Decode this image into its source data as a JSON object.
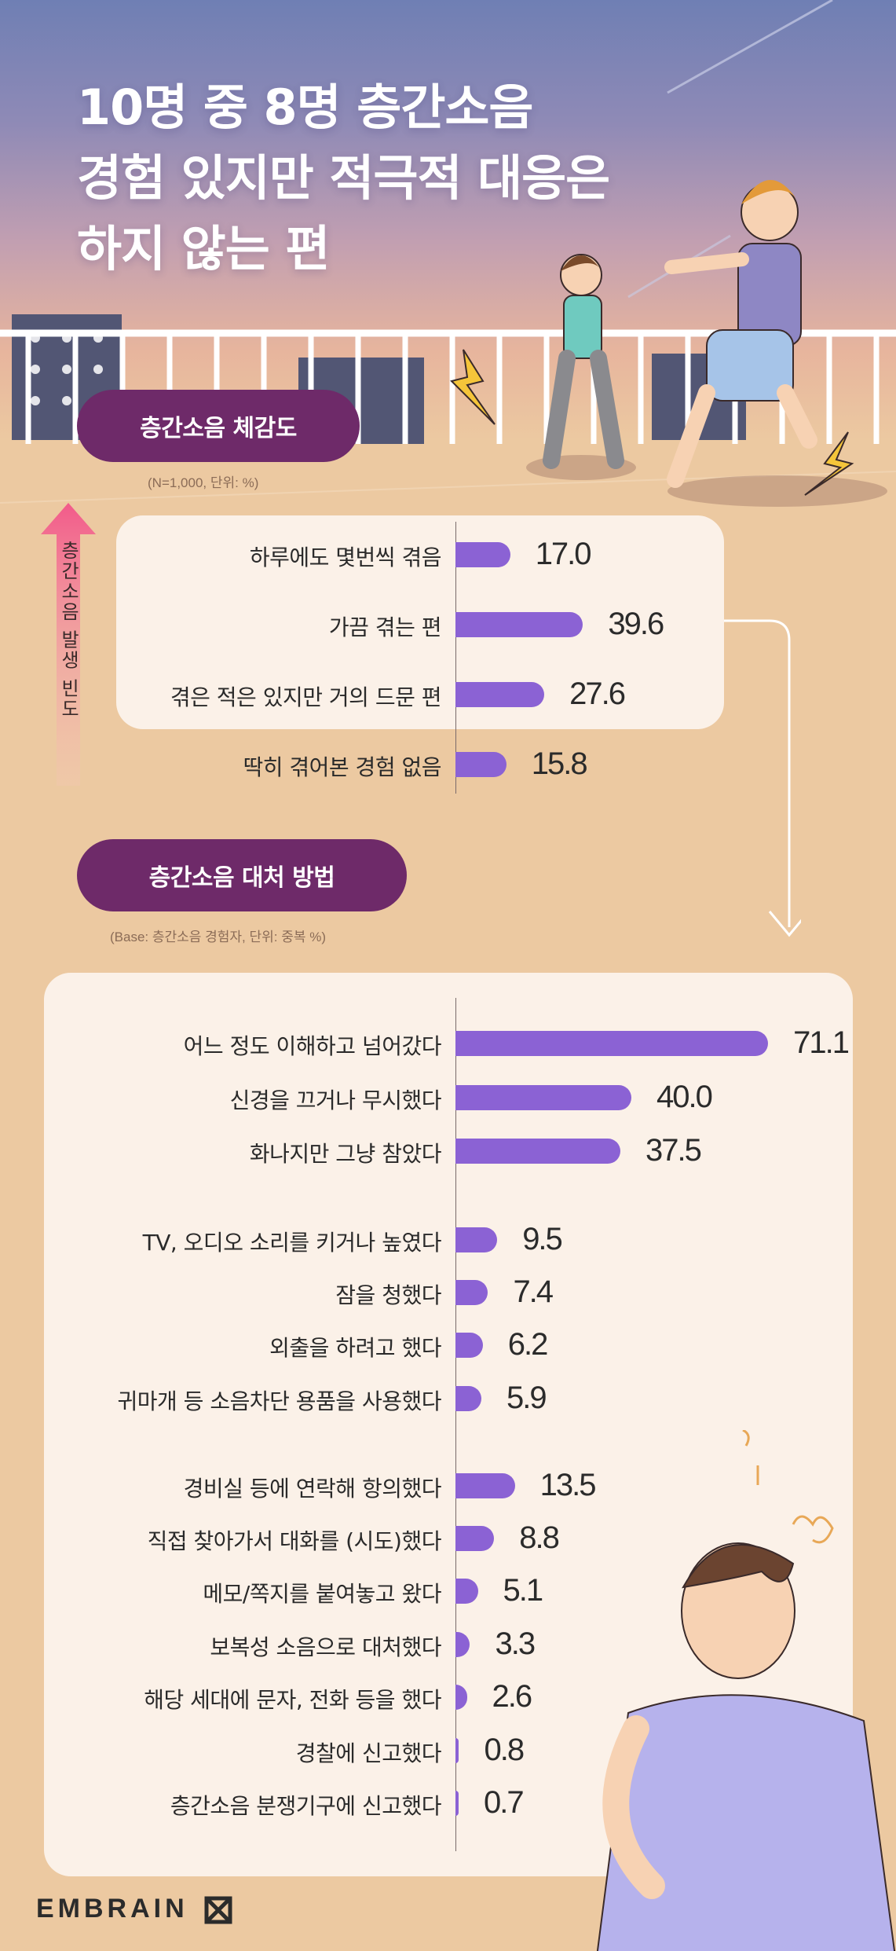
{
  "title": {
    "lines": [
      "10명 중 8명 층간소음",
      "경험 있지만 적극적 대응은",
      "하지 않는 편"
    ]
  },
  "section1": {
    "pill": "층간소음 체감도",
    "note": "(N=1,000, 단위: %)",
    "axis_label": "층간소음 발생 빈도"
  },
  "section2": {
    "pill": "층간소음 대처 방법",
    "note": "(Base: 층간소음 경험자, 단위: 중복 %)"
  },
  "brand": "EMBRAIN",
  "colors": {
    "bar": "#8b62d4",
    "pill": "#6e2a69",
    "panel": "#fbf1e8",
    "background": "#ecc9a1"
  },
  "chart_data": [
    {
      "type": "bar",
      "orientation": "horizontal",
      "title": "층간소음 체감도",
      "categories": [
        "하루에도 몇번씩 겪음",
        "가끔 겪는 편",
        "겪은 적은 있지만 거의 드문 편",
        "딱히 겪어본 경험 없음"
      ],
      "values": [
        17.0,
        39.6,
        27.6,
        15.8
      ],
      "labels": [
        "17.0",
        "39.6",
        "27.6",
        "15.8"
      ],
      "xlim": [
        0,
        100
      ]
    },
    {
      "type": "bar",
      "orientation": "horizontal",
      "title": "층간소음 대처 방법",
      "categories": [
        "어느 정도 이해하고 넘어갔다",
        "신경을 끄거나 무시했다",
        "화나지만 그냥 참았다",
        "TV, 오디오 소리를 키거나 높였다",
        "잠을 청했다",
        "외출을 하려고 했다",
        "귀마개 등 소음차단 용품을 사용했다",
        "경비실 등에 연락해 항의했다",
        "직접 찾아가서 대화를 (시도)했다",
        "메모/쪽지를 붙여놓고 왔다",
        "보복성 소음으로 대처했다",
        "해당 세대에 문자, 전화 등을 했다",
        "경찰에 신고했다",
        "층간소음 분쟁기구에 신고했다"
      ],
      "values": [
        71.1,
        40.0,
        37.5,
        9.5,
        7.4,
        6.2,
        5.9,
        13.5,
        8.8,
        5.1,
        3.3,
        2.6,
        0.8,
        0.7
      ],
      "labels": [
        "71.1",
        "40.0",
        "37.5",
        "9.5",
        "7.4",
        "6.2",
        "5.9",
        "13.5",
        "8.8",
        "5.1",
        "3.3",
        "2.6",
        "0.8",
        "0.7"
      ],
      "groups": [
        [
          0,
          1,
          2
        ],
        [
          3,
          4,
          5,
          6
        ],
        [
          7,
          8,
          9,
          10,
          11,
          12,
          13
        ]
      ],
      "xlim": [
        0,
        100
      ]
    }
  ]
}
